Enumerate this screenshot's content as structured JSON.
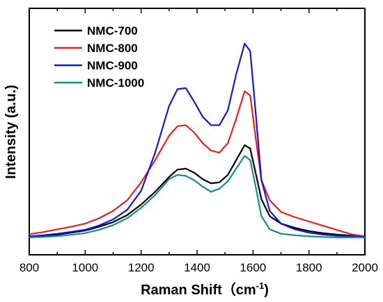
{
  "chart_data": {
    "type": "line",
    "title": "",
    "xlabel": "Raman Shift（cm",
    "xlabel_sup": "-1",
    "xlabel_close": ")",
    "ylabel": "Intensity (a.u.)",
    "xlim": [
      800,
      2000
    ],
    "ylim": [
      0,
      100
    ],
    "xticks": [
      "800",
      "1000",
      "1200",
      "1400",
      "1600",
      "1800",
      "2000"
    ],
    "y_tick_labels_shown": false,
    "grid": false,
    "legend_position": "top-left",
    "x": [
      800,
      850,
      900,
      950,
      1000,
      1050,
      1100,
      1150,
      1200,
      1250,
      1300,
      1330,
      1360,
      1390,
      1420,
      1450,
      1480,
      1510,
      1540,
      1570,
      1590,
      1610,
      1630,
      1660,
      1700,
      1750,
      1800,
      1850,
      1900,
      1950,
      2000
    ],
    "series": [
      {
        "name": "NMC-700",
        "color": "#000000",
        "values": [
          2.5,
          2.8,
          3.3,
          4.2,
          5.2,
          7.0,
          9.2,
          12.5,
          17.5,
          23.5,
          30.5,
          34.0,
          34.5,
          32.5,
          29.5,
          27.5,
          28.0,
          31.5,
          38.5,
          45.5,
          44.0,
          32.0,
          20.0,
          12.0,
          8.5,
          6.5,
          5.0,
          4.0,
          3.3,
          2.8,
          2.5
        ]
      },
      {
        "name": "NMC-800",
        "color": "#ee1c1c",
        "values": [
          3.5,
          4.5,
          5.8,
          7.0,
          8.5,
          11.0,
          14.5,
          19.5,
          28.0,
          38.5,
          50.0,
          54.5,
          55.0,
          51.5,
          46.5,
          43.0,
          42.0,
          46.5,
          58.0,
          71.0,
          69.0,
          48.5,
          29.0,
          19.5,
          14.0,
          11.5,
          9.5,
          7.5,
          5.5,
          3.5,
          2.5
        ]
      },
      {
        "name": "NMC-900",
        "color": "#1616d2",
        "values": [
          2.5,
          3.0,
          3.7,
          4.6,
          5.6,
          7.6,
          10.5,
          15.0,
          24.0,
          42.0,
          64.0,
          72.0,
          72.5,
          66.0,
          59.0,
          55.0,
          55.0,
          62.0,
          79.0,
          93.5,
          90.0,
          60.0,
          29.0,
          14.5,
          8.5,
          5.8,
          4.2,
          3.3,
          2.8,
          2.5,
          2.3
        ]
      },
      {
        "name": "NMC-1000",
        "color": "#178a8a",
        "values": [
          2.0,
          2.2,
          2.6,
          3.2,
          4.0,
          5.6,
          7.8,
          11.0,
          16.0,
          22.0,
          29.5,
          31.5,
          31.0,
          29.0,
          26.0,
          23.5,
          25.0,
          28.5,
          34.5,
          40.5,
          38.5,
          25.5,
          12.0,
          5.8,
          3.7,
          3.0,
          2.5,
          2.2,
          2.0,
          2.0,
          1.9
        ]
      }
    ]
  }
}
